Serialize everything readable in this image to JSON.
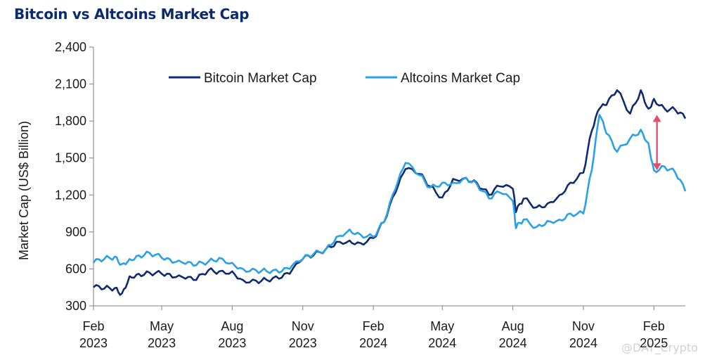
{
  "title": "Bitcoin vs Altcoins Market Cap",
  "watermark": "@DAY_Crypto",
  "colors": {
    "title": "#0d2b6b",
    "bitcoin": "#0f2a6e",
    "altcoins": "#2aa0e6",
    "arrow": "#e0506a",
    "axis": "#7f7f7f"
  },
  "chart_data": {
    "type": "line",
    "title": "Bitcoin vs Altcoins Market Cap",
    "ylabel": "Market Cap (US$ Billion)",
    "xlabel": "",
    "ylim": [
      300,
      2400
    ],
    "yticks": [
      300,
      600,
      900,
      1200,
      1500,
      1800,
      2100,
      2400
    ],
    "ytick_labels": [
      "300",
      "600",
      "900",
      "1,200",
      "1,500",
      "1,800",
      "2,100",
      "2,400"
    ],
    "xlim": [
      "2023-02-01",
      "2025-03-14"
    ],
    "xticks": [
      {
        "date": "2023-02-01",
        "month": "Feb",
        "year": "2023"
      },
      {
        "date": "2023-05-01",
        "month": "May",
        "year": "2023"
      },
      {
        "date": "2023-08-01",
        "month": "Aug",
        "year": "2023"
      },
      {
        "date": "2023-11-01",
        "month": "Nov",
        "year": "2023"
      },
      {
        "date": "2024-02-01",
        "month": "Feb",
        "year": "2024"
      },
      {
        "date": "2024-05-01",
        "month": "May",
        "year": "2024"
      },
      {
        "date": "2024-08-01",
        "month": "Aug",
        "year": "2024"
      },
      {
        "date": "2024-11-01",
        "month": "Nov",
        "year": "2024"
      },
      {
        "date": "2025-02-01",
        "month": "Feb",
        "year": "2025"
      }
    ],
    "legend_position": "top-left",
    "grid": false,
    "series": [
      {
        "name": "Bitcoin Market Cap",
        "color": "#0f2a6e",
        "x": [
          "2023-02-01",
          "2023-02-15",
          "2023-03-01",
          "2023-03-10",
          "2023-03-20",
          "2023-04-01",
          "2023-04-15",
          "2023-05-01",
          "2023-05-15",
          "2023-06-01",
          "2023-06-15",
          "2023-07-01",
          "2023-07-15",
          "2023-08-01",
          "2023-08-15",
          "2023-09-01",
          "2023-09-15",
          "2023-10-01",
          "2023-10-15",
          "2023-11-01",
          "2023-11-15",
          "2023-12-01",
          "2023-12-15",
          "2024-01-01",
          "2024-01-15",
          "2024-02-01",
          "2024-02-15",
          "2024-03-01",
          "2024-03-14",
          "2024-04-01",
          "2024-04-15",
          "2024-05-01",
          "2024-05-15",
          "2024-06-01",
          "2024-06-15",
          "2024-07-01",
          "2024-07-15",
          "2024-08-01",
          "2024-08-05",
          "2024-08-15",
          "2024-09-01",
          "2024-09-15",
          "2024-10-01",
          "2024-10-15",
          "2024-11-01",
          "2024-11-12",
          "2024-11-22",
          "2024-12-01",
          "2024-12-15",
          "2025-01-01",
          "2025-01-15",
          "2025-01-25",
          "2025-02-01",
          "2025-02-15",
          "2025-03-01",
          "2025-03-14"
        ],
        "values": [
          450,
          440,
          445,
          400,
          540,
          560,
          570,
          560,
          530,
          520,
          510,
          590,
          580,
          580,
          510,
          505,
          510,
          520,
          560,
          680,
          710,
          760,
          820,
          830,
          810,
          850,
          980,
          1220,
          1410,
          1370,
          1270,
          1180,
          1330,
          1340,
          1300,
          1200,
          1270,
          1250,
          1060,
          1170,
          1100,
          1130,
          1200,
          1300,
          1380,
          1720,
          1900,
          1930,
          2050,
          1860,
          2050,
          1900,
          1980,
          1900,
          1890,
          1820
        ]
      },
      {
        "name": "Altcoins Market Cap",
        "color": "#2aa0e6",
        "x": [
          "2023-02-01",
          "2023-02-15",
          "2023-03-01",
          "2023-03-10",
          "2023-03-20",
          "2023-04-01",
          "2023-04-15",
          "2023-05-01",
          "2023-05-15",
          "2023-06-01",
          "2023-06-15",
          "2023-07-01",
          "2023-07-15",
          "2023-08-01",
          "2023-08-15",
          "2023-09-01",
          "2023-09-15",
          "2023-10-01",
          "2023-10-15",
          "2023-11-01",
          "2023-11-15",
          "2023-12-01",
          "2023-12-15",
          "2024-01-01",
          "2024-01-15",
          "2024-02-01",
          "2024-02-15",
          "2024-03-01",
          "2024-03-14",
          "2024-04-01",
          "2024-04-15",
          "2024-05-01",
          "2024-05-15",
          "2024-06-01",
          "2024-06-15",
          "2024-07-01",
          "2024-07-15",
          "2024-08-01",
          "2024-08-05",
          "2024-08-15",
          "2024-09-01",
          "2024-09-15",
          "2024-10-01",
          "2024-10-15",
          "2024-11-01",
          "2024-11-12",
          "2024-11-22",
          "2024-12-01",
          "2024-12-15",
          "2025-01-01",
          "2025-01-15",
          "2025-01-25",
          "2025-02-01",
          "2025-02-15",
          "2025-03-01",
          "2025-03-14"
        ],
        "values": [
          650,
          680,
          700,
          640,
          680,
          710,
          730,
          690,
          650,
          640,
          630,
          660,
          690,
          650,
          600,
          590,
          580,
          570,
          600,
          680,
          720,
          760,
          860,
          920,
          880,
          860,
          980,
          1250,
          1460,
          1360,
          1260,
          1300,
          1300,
          1340,
          1290,
          1170,
          1220,
          1150,
          930,
          1000,
          940,
          990,
          1000,
          1050,
          1050,
          1400,
          1850,
          1700,
          1550,
          1660,
          1730,
          1620,
          1400,
          1430,
          1380,
          1230
        ]
      }
    ],
    "annotations": [
      {
        "type": "double-arrow",
        "x": "2025-02-05",
        "y_from": 1850,
        "y_to": 1400,
        "color": "#e0506a"
      }
    ]
  }
}
